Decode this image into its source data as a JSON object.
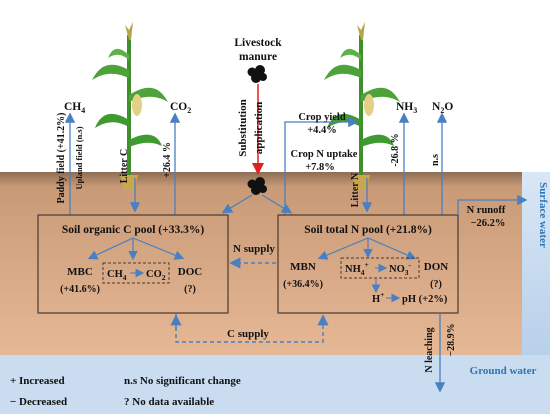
{
  "top": {
    "livestock": "Livestock",
    "manure": "manure",
    "substitution": "Substitution",
    "application": "application"
  },
  "gases": {
    "ch4": "CH",
    "ch4_sub": "4",
    "co2": "CO",
    "co2_sub": "2",
    "nh3": "NH",
    "nh3_sub": "3",
    "n2o": "N",
    "n2o_sub": "2",
    "n2o_tail": "O"
  },
  "effects": {
    "paddy": "Paddy field (+41.2%)",
    "upland": "Upland field (n.s)",
    "co2_change": "+26.4 %",
    "nh3_change": "-26.8 %",
    "n2o_change": "n.s"
  },
  "labels": {
    "litter_c": "Litter C",
    "litter_n": "Litter N",
    "crop_yield": "Crop yield",
    "crop_yield_value": "+4.4%",
    "crop_n_uptake": "Crop N uptake",
    "crop_n_uptake_value": "+7.8%",
    "n_runoff": "N runoff",
    "n_runoff_value": "−26.2%",
    "surface_water": "Surface water",
    "ground_water": "Ground water",
    "n_leaching": "N leaching",
    "n_leaching_value": "−28.9%",
    "n_supply": "N supply",
    "c_supply": "C supply"
  },
  "c_pool": {
    "title": "Soil organic C pool (+33.3%)",
    "mbc": "MBC",
    "mbc_value": "(+41.6%)",
    "ch4": "CH",
    "ch4_sub": "4",
    "co2": "CO",
    "co2_sub": "2",
    "doc": "DOC",
    "doc_value": "(?)"
  },
  "n_pool": {
    "title": "Soil total N pool (+21.8%)",
    "mbn": "MBN",
    "mbn_value": "(+36.4%)",
    "nh4": "NH",
    "nh4_sub": "4",
    "nh4_sup": "+",
    "no3": "NO",
    "no3_sub": "3",
    "no3_sup": "-",
    "don": "DON",
    "don_value": "(?)",
    "h": "H",
    "h_sup": "+",
    "ph": "pH (+2%)"
  },
  "legend": {
    "increased": "+ Increased",
    "decreased": "− Decreased",
    "ns": "n.s No significant change",
    "nodata": "?   No data available"
  },
  "colors": {
    "soil": "#cf9e78",
    "soil_dark": "#8a6a4f",
    "water": "#c9dcf0",
    "arrow_blue": "#4a7fc1",
    "arrow_red": "#e02020",
    "box_border": "#4a3a30",
    "water_text": "#2e75b6"
  }
}
